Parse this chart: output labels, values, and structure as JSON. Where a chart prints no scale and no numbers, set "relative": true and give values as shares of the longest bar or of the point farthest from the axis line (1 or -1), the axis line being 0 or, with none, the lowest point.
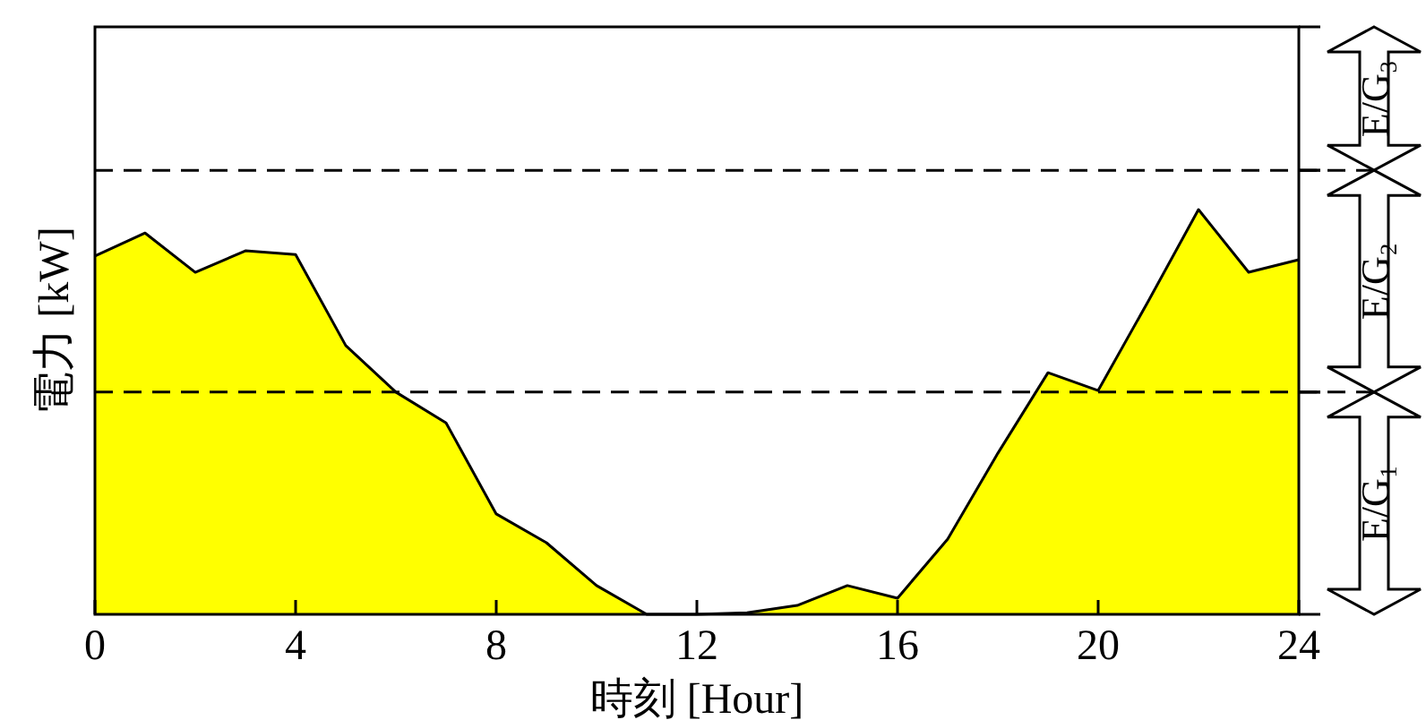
{
  "chart_data": {
    "type": "area",
    "relative": true,
    "xlabel": "時刻 [Hour]",
    "ylabel": "電力 [kW]",
    "x": [
      0,
      1,
      2,
      3,
      4,
      5,
      6,
      7,
      8,
      9,
      10,
      11,
      12,
      13,
      14,
      15,
      16,
      17,
      18,
      19,
      20,
      21,
      22,
      23,
      24
    ],
    "series": [
      {
        "color": "#ffff00",
        "values": [
          0.885,
          0.942,
          0.845,
          0.898,
          0.889,
          0.664,
          0.549,
          0.473,
          0.248,
          0.177,
          0.071,
          0,
          0,
          0.004,
          0.022,
          0.071,
          0.04,
          0.186,
          0.398,
          0.597,
          0.553,
          0.774,
          1,
          0.845,
          0.876
        ]
      }
    ],
    "xlim": [
      0,
      24
    ],
    "xticks": [
      0,
      4,
      8,
      12,
      16,
      20,
      24
    ],
    "grid": false,
    "ref_lines": [
      {
        "axis": "y",
        "value": 0.549,
        "line_style": "dashed"
      },
      {
        "axis": "y",
        "value": 1.097,
        "line_style": "dashed"
      }
    ],
    "annotations": [
      "E/G₁",
      "E/G₂",
      "E/G₃"
    ]
  }
}
